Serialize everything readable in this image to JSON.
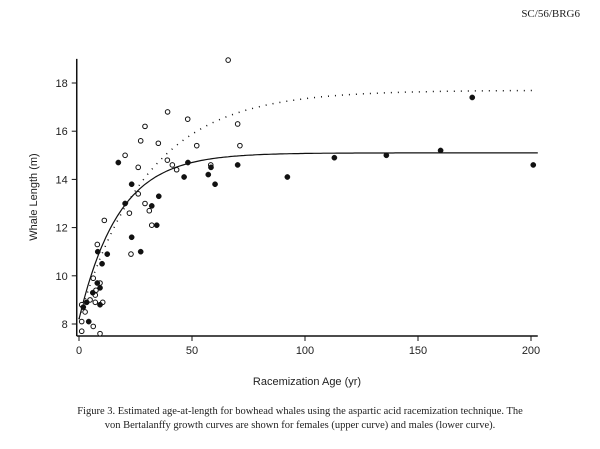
{
  "header": {
    "doc_id": "SC/56/BRG6"
  },
  "caption": {
    "line1": "Figure 3. Estimated age-at-length for bowhead whales using the aspartic acid racemization technique.  The",
    "line2": "von Bertalanffy growth curves are shown for females (upper curve) and males (lower curve)."
  },
  "chart_data": {
    "type": "scatter",
    "title": "",
    "xlabel": "Racemization Age (yr)",
    "ylabel": "Whale Length (m)",
    "xlim": [
      -1,
      203
    ],
    "ylim": [
      7.5,
      19
    ],
    "xticks": [
      0,
      50,
      100,
      150,
      200
    ],
    "yticks": [
      8,
      10,
      12,
      14,
      16,
      18
    ],
    "grid": false,
    "series": [
      {
        "name": "Females",
        "marker": "open-circle",
        "points": [
          [
            39.2,
            16.8
          ],
          [
            48.1,
            16.5
          ],
          [
            29.2,
            16.2
          ],
          [
            27.3,
            15.6
          ],
          [
            20.4,
            15.0
          ],
          [
            35.1,
            15.5
          ],
          [
            39.1,
            14.8
          ],
          [
            41.3,
            14.6
          ],
          [
            43.2,
            14.4
          ],
          [
            26.2,
            14.5
          ],
          [
            52.1,
            15.4
          ],
          [
            70.2,
            16.3
          ],
          [
            71.2,
            15.4
          ],
          [
            58.3,
            14.6
          ],
          [
            26.2,
            13.4
          ],
          [
            29.2,
            13.0
          ],
          [
            31.1,
            12.7
          ],
          [
            22.3,
            12.6
          ],
          [
            32.2,
            12.1
          ],
          [
            11.2,
            12.3
          ],
          [
            8.1,
            11.3
          ],
          [
            23.0,
            10.9
          ],
          [
            6.3,
            9.9
          ],
          [
            9.3,
            9.7
          ],
          [
            7.5,
            9.4
          ],
          [
            7.2,
            9.2
          ],
          [
            4.9,
            9.0
          ],
          [
            7.2,
            8.9
          ],
          [
            10.5,
            8.9
          ],
          [
            1.2,
            8.8
          ],
          [
            2.7,
            8.5
          ],
          [
            1.2,
            8.1
          ],
          [
            6.3,
            7.9
          ],
          [
            1.2,
            7.7
          ],
          [
            9.3,
            7.6
          ],
          [
            66.0,
            18.95
          ]
        ]
      },
      {
        "name": "Males",
        "marker": "filled-circle",
        "points": [
          [
            17.4,
            14.7
          ],
          [
            23.3,
            13.8
          ],
          [
            20.4,
            13.0
          ],
          [
            23.3,
            11.6
          ],
          [
            27.3,
            11.0
          ],
          [
            8.3,
            11.0
          ],
          [
            12.5,
            10.9
          ],
          [
            10.2,
            10.5
          ],
          [
            8.1,
            9.7
          ],
          [
            9.3,
            9.5
          ],
          [
            6.1,
            9.3
          ],
          [
            9.3,
            8.8
          ],
          [
            3.4,
            8.9
          ],
          [
            1.9,
            8.7
          ],
          [
            4.3,
            8.1
          ],
          [
            32.2,
            12.9
          ],
          [
            35.3,
            13.3
          ],
          [
            34.4,
            12.1
          ],
          [
            46.5,
            14.1
          ],
          [
            48.2,
            14.7
          ],
          [
            57.2,
            14.2
          ],
          [
            58.4,
            14.5
          ],
          [
            60.2,
            13.8
          ],
          [
            70.2,
            14.6
          ],
          [
            92.2,
            14.1
          ],
          [
            113,
            14.9
          ],
          [
            136,
            15.0
          ],
          [
            160,
            15.2
          ],
          [
            174,
            17.4
          ],
          [
            201,
            14.6
          ]
        ]
      }
    ],
    "curves": [
      {
        "name": "Females (upper curve)",
        "style": "dotted",
        "model": "von Bertalanffy",
        "Linf": 17.7,
        "L0": 8.2,
        "k": 0.033
      },
      {
        "name": "Males (lower curve)",
        "style": "solid",
        "model": "von Bertalanffy",
        "Linf": 15.1,
        "L0": 8.2,
        "k": 0.057
      }
    ]
  }
}
